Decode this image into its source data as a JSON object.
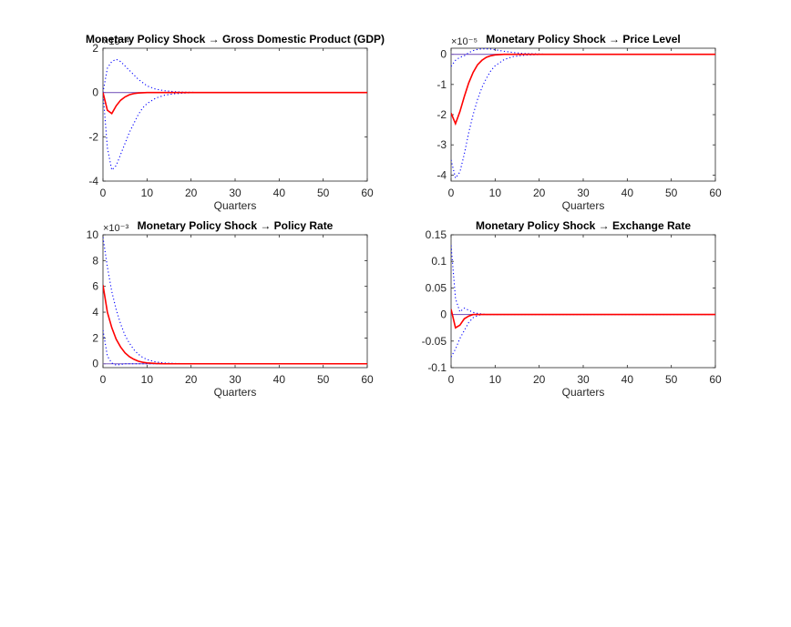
{
  "chart_data": [
    {
      "type": "line",
      "title": "Monetary Policy Shock → Gross Domestic Product (GDP)",
      "xlabel": "Quarters",
      "ylabel": "",
      "exponent_label": "×10⁻⁴",
      "xlim": [
        0,
        60
      ],
      "ylim": [
        -4,
        2
      ],
      "xticks": [
        0,
        10,
        20,
        30,
        40,
        50,
        60
      ],
      "yticks": [
        -4,
        -2,
        0,
        2
      ],
      "ytick_labels": [
        "-4",
        "-2",
        "0",
        "2"
      ],
      "x": [
        0,
        1,
        2,
        3,
        4,
        5,
        6,
        7,
        8,
        9,
        10,
        12,
        14,
        16,
        18,
        20,
        22,
        24,
        26,
        28,
        30,
        35,
        40,
        45,
        50,
        55,
        60
      ],
      "series": [
        {
          "role": "impulse-response",
          "style": "solid",
          "color": "#ff0000",
          "values": [
            0,
            -0.8,
            -0.95,
            -0.6,
            -0.35,
            -0.2,
            -0.1,
            -0.05,
            -0.02,
            -0.01,
            0,
            0,
            0,
            0,
            0,
            0,
            0,
            0,
            0,
            0,
            0,
            0,
            0,
            0,
            0,
            0,
            0
          ]
        },
        {
          "role": "upper-band",
          "style": "dotted",
          "color": "#0000ff",
          "values": [
            0,
            1.1,
            1.4,
            1.5,
            1.4,
            1.2,
            1.0,
            0.8,
            0.6,
            0.45,
            0.3,
            0.15,
            0.08,
            0.04,
            0.02,
            0.01,
            0,
            0,
            0,
            0,
            0,
            0,
            0,
            0,
            0,
            0,
            0
          ]
        },
        {
          "role": "lower-band",
          "style": "dotted",
          "color": "#0000ff",
          "values": [
            0,
            -2.5,
            -3.5,
            -3.3,
            -2.8,
            -2.3,
            -1.8,
            -1.4,
            -1.0,
            -0.7,
            -0.5,
            -0.25,
            -0.12,
            -0.06,
            -0.03,
            -0.01,
            0,
            0,
            0,
            0,
            0,
            0,
            0,
            0,
            0,
            0,
            0
          ]
        },
        {
          "role": "zero-line",
          "style": "solid",
          "color": "#7f5fbf",
          "values": [
            0,
            0,
            0,
            0,
            0,
            0,
            0,
            0,
            0,
            0,
            0,
            0,
            0,
            0,
            0,
            0,
            0,
            0,
            0,
            0,
            0,
            0,
            0,
            0,
            0,
            0,
            0
          ]
        }
      ]
    },
    {
      "type": "line",
      "title": "Monetary Policy Shock → Price Level",
      "xlabel": "Quarters",
      "ylabel": "",
      "exponent_label": "×10⁻⁵",
      "xlim": [
        0,
        60
      ],
      "ylim": [
        -4.2,
        0.2
      ],
      "xticks": [
        0,
        10,
        20,
        30,
        40,
        50,
        60
      ],
      "yticks": [
        -4,
        -3,
        -2,
        -1,
        0
      ],
      "ytick_labels": [
        "-4",
        "-3",
        "-2",
        "-1",
        "0"
      ],
      "x": [
        0,
        1,
        2,
        3,
        4,
        5,
        6,
        7,
        8,
        9,
        10,
        12,
        14,
        16,
        18,
        20,
        22,
        24,
        26,
        28,
        30,
        35,
        40,
        45,
        50,
        55,
        60
      ],
      "series": [
        {
          "role": "impulse-response",
          "style": "solid",
          "color": "#ff0000",
          "values": [
            -1.95,
            -2.3,
            -1.9,
            -1.4,
            -0.95,
            -0.6,
            -0.35,
            -0.2,
            -0.1,
            -0.05,
            -0.02,
            0,
            0,
            0,
            0,
            0,
            0,
            0,
            0,
            0,
            0,
            0,
            0,
            0,
            0,
            0,
            0
          ]
        },
        {
          "role": "upper-band",
          "style": "dotted",
          "color": "#0000ff",
          "values": [
            -0.4,
            -0.2,
            -0.1,
            -0.05,
            0.05,
            0.12,
            0.16,
            0.18,
            0.18,
            0.17,
            0.15,
            0.1,
            0.06,
            0.03,
            0.02,
            0.01,
            0,
            0,
            0,
            0,
            0,
            0,
            0,
            0,
            0,
            0,
            0
          ]
        },
        {
          "role": "lower-band",
          "style": "dotted",
          "color": "#0000ff",
          "values": [
            -3.5,
            -4.1,
            -3.9,
            -3.3,
            -2.6,
            -2.0,
            -1.5,
            -1.1,
            -0.8,
            -0.55,
            -0.38,
            -0.18,
            -0.08,
            -0.04,
            -0.02,
            -0.01,
            0,
            0,
            0,
            0,
            0,
            0,
            0,
            0,
            0,
            0,
            0
          ]
        },
        {
          "role": "zero-line",
          "style": "solid",
          "color": "#7f5fbf",
          "values": [
            0,
            0,
            0,
            0,
            0,
            0,
            0,
            0,
            0,
            0,
            0,
            0,
            0,
            0,
            0,
            0,
            0,
            0,
            0,
            0,
            0,
            0,
            0,
            0,
            0,
            0,
            0
          ]
        }
      ]
    },
    {
      "type": "line",
      "title": "Monetary Policy Shock → Policy Rate",
      "xlabel": "Quarters",
      "ylabel": "",
      "exponent_label": "×10⁻³",
      "xlim": [
        0,
        60
      ],
      "ylim": [
        -0.3,
        10
      ],
      "xticks": [
        0,
        10,
        20,
        30,
        40,
        50,
        60
      ],
      "yticks": [
        0,
        2,
        4,
        6,
        8,
        10
      ],
      "ytick_labels": [
        "0",
        "2",
        "4",
        "6",
        "8",
        "10"
      ],
      "x": [
        0,
        1,
        2,
        3,
        4,
        5,
        6,
        7,
        8,
        9,
        10,
        12,
        14,
        16,
        18,
        20,
        22,
        24,
        26,
        28,
        30,
        35,
        40,
        45,
        50,
        55,
        60
      ],
      "series": [
        {
          "role": "impulse-response",
          "style": "solid",
          "color": "#ff0000",
          "values": [
            6.1,
            4.0,
            2.8,
            1.9,
            1.3,
            0.85,
            0.55,
            0.35,
            0.2,
            0.12,
            0.07,
            0.02,
            0,
            0,
            0,
            0,
            0,
            0,
            0,
            0,
            0,
            0,
            0,
            0,
            0,
            0,
            0
          ]
        },
        {
          "role": "upper-band",
          "style": "dotted",
          "color": "#0000ff",
          "values": [
            9.8,
            7.5,
            5.6,
            4.2,
            3.1,
            2.2,
            1.6,
            1.1,
            0.75,
            0.5,
            0.33,
            0.14,
            0.06,
            0.03,
            0.01,
            0,
            0,
            0,
            0,
            0,
            0,
            0,
            0,
            0,
            0,
            0,
            0
          ]
        },
        {
          "role": "lower-band",
          "style": "dotted",
          "color": "#0000ff",
          "values": [
            2.6,
            0.6,
            0.05,
            -0.1,
            -0.05,
            0,
            0,
            0,
            0,
            0,
            0,
            0,
            0,
            0,
            0,
            0,
            0,
            0,
            0,
            0,
            0,
            0,
            0,
            0,
            0,
            0,
            0
          ]
        },
        {
          "role": "zero-line",
          "style": "solid",
          "color": "#7f5fbf",
          "values": [
            0,
            0,
            0,
            0,
            0,
            0,
            0,
            0,
            0,
            0,
            0,
            0,
            0,
            0,
            0,
            0,
            0,
            0,
            0,
            0,
            0,
            0,
            0,
            0,
            0,
            0,
            0
          ]
        }
      ]
    },
    {
      "type": "line",
      "title": "Monetary Policy Shock → Exchange Rate",
      "xlabel": "Quarters",
      "ylabel": "",
      "exponent_label": "",
      "xlim": [
        0,
        60
      ],
      "ylim": [
        -0.1,
        0.15
      ],
      "xticks": [
        0,
        10,
        20,
        30,
        40,
        50,
        60
      ],
      "yticks": [
        -0.1,
        -0.05,
        0,
        0.05,
        0.1,
        0.15
      ],
      "ytick_labels": [
        "-0.1",
        "-0.05",
        "0",
        "0.05",
        "0.1",
        "0.15"
      ],
      "x": [
        0,
        1,
        2,
        3,
        4,
        5,
        6,
        7,
        8,
        9,
        10,
        12,
        14,
        16,
        18,
        20,
        22,
        24,
        26,
        28,
        30,
        35,
        40,
        45,
        50,
        55,
        60
      ],
      "series": [
        {
          "role": "impulse-response",
          "style": "solid",
          "color": "#ff0000",
          "values": [
            0.01,
            -0.025,
            -0.02,
            -0.008,
            -0.003,
            0,
            0,
            0,
            0,
            0,
            0,
            0,
            0,
            0,
            0,
            0,
            0,
            0,
            0,
            0,
            0,
            0,
            0,
            0,
            0,
            0,
            0
          ]
        },
        {
          "role": "upper-band",
          "style": "dotted",
          "color": "#0000ff",
          "values": [
            0.13,
            0.03,
            0.005,
            0.012,
            0.008,
            0.004,
            0.002,
            0.001,
            0,
            0,
            0,
            0,
            0,
            0,
            0,
            0,
            0,
            0,
            0,
            0,
            0,
            0,
            0,
            0,
            0,
            0,
            0
          ]
        },
        {
          "role": "lower-band",
          "style": "dotted",
          "color": "#0000ff",
          "values": [
            -0.08,
            -0.065,
            -0.045,
            -0.03,
            -0.015,
            -0.006,
            -0.002,
            0,
            0,
            0,
            0,
            0,
            0,
            0,
            0,
            0,
            0,
            0,
            0,
            0,
            0,
            0,
            0,
            0,
            0,
            0,
            0
          ]
        },
        {
          "role": "zero-line",
          "style": "solid",
          "color": "#7f5fbf",
          "values": [
            0,
            0,
            0,
            0,
            0,
            0,
            0,
            0,
            0,
            0,
            0,
            0,
            0,
            0,
            0,
            0,
            0,
            0,
            0,
            0,
            0,
            0,
            0,
            0,
            0,
            0,
            0
          ]
        }
      ]
    }
  ]
}
